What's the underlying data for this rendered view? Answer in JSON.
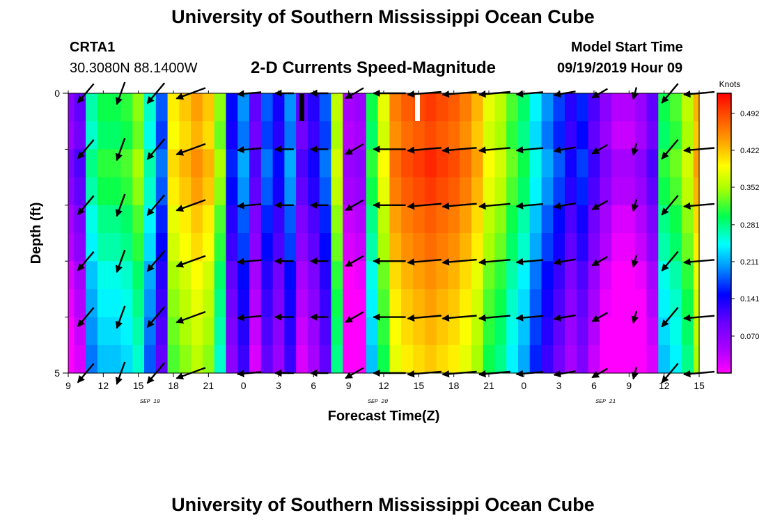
{
  "header": {
    "title": "University of Southern Mississippi Ocean Cube",
    "station_id": "CRTA1",
    "station_coords": "30.3080N 88.1400W",
    "plot_title": "2-D Currents Speed-Magnitude",
    "model_label": "Model Start Time",
    "model_time": "09/19/2019 Hour 09"
  },
  "footer": {
    "title": "University of Southern Mississippi Ocean Cube"
  },
  "chart_data": {
    "type": "heatmap",
    "title": "2-D Currents Speed-Magnitude",
    "xlabel": "Forecast Time(Z)",
    "ylabel": "Depth (ft)",
    "x_tick_labels": [
      "9",
      "12",
      "15",
      "18",
      "21",
      "0",
      "3",
      "6",
      "9",
      "12",
      "15",
      "18",
      "21",
      "0",
      "3",
      "6",
      "9",
      "12",
      "15"
    ],
    "x_hours_from_start": [
      0,
      3,
      6,
      9,
      12,
      15,
      18,
      21,
      24,
      27,
      30,
      33,
      36,
      39,
      42,
      45,
      48,
      51,
      54
    ],
    "date_labels": [
      {
        "text": "SEP 19",
        "hour": 7
      },
      {
        "text": "SEP 20",
        "hour": 26.5
      },
      {
        "text": "SEP 21",
        "hour": 46
      }
    ],
    "y_tick_labels": [
      "0",
      "5"
    ],
    "ylim": [
      0,
      5
    ],
    "xlim_hours": [
      0,
      54
    ],
    "colorbar": {
      "label": "Knots",
      "range": [
        0.0,
        0.53
      ],
      "ticks": [
        "0.492",
        "0.422",
        "0.352",
        "0.281",
        "0.211",
        "0.141",
        "0.070"
      ],
      "tick_values": [
        0.492,
        0.422,
        0.352,
        0.281,
        0.211,
        0.141,
        0.07
      ]
    },
    "speed_profile_by_hour": [
      0.07,
      0.1,
      0.27,
      0.3,
      0.3,
      0.31,
      0.34,
      0.26,
      0.18,
      0.4,
      0.42,
      0.44,
      0.42,
      0.34,
      0.15,
      0.2,
      0.1,
      0.18,
      0.14,
      0.2,
      0.1,
      0.13,
      0.18,
      0.36,
      0.05,
      0.06,
      0.3,
      0.38,
      0.46,
      0.48,
      0.49,
      0.5,
      0.49,
      0.48,
      0.46,
      0.43,
      0.38,
      0.36,
      0.32,
      0.29,
      0.24,
      0.2,
      0.17,
      0.13,
      0.16,
      0.11,
      0.07,
      0.04,
      0.04,
      0.06,
      0.1,
      0.3,
      0.32,
      0.36,
      0.43
    ],
    "depth_modifier": [
      0.0,
      -0.01,
      0.01,
      0.0,
      -0.02,
      -0.03,
      -0.05,
      -0.06,
      -0.07,
      -0.08
    ],
    "vectors": {
      "depth_rows": [
        0,
        1,
        2,
        3,
        4,
        5
      ],
      "hours": [
        1.5,
        4.5,
        7.5,
        10.5,
        15.5,
        18.5,
        21.5,
        24.5,
        27.5,
        30.5,
        33.5,
        36.5,
        39.5,
        42.5,
        45.5,
        48.5,
        51.5,
        54
      ],
      "direction_deg_by_hour": [
        130,
        110,
        130,
        160,
        175,
        180,
        180,
        150,
        180,
        175,
        175,
        175,
        175,
        170,
        150,
        105,
        130,
        175
      ],
      "magnitude_knots": [
        0.3,
        0.28,
        0.34,
        0.42,
        0.28,
        0.18,
        0.16,
        0.22,
        0.45,
        0.48,
        0.49,
        0.43,
        0.34,
        0.24,
        0.16,
        0.05,
        0.31,
        0.42
      ]
    }
  }
}
